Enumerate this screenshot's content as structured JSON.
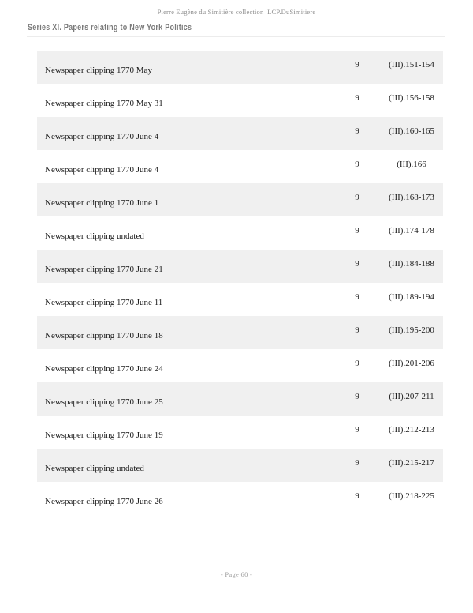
{
  "header": {
    "collection_line": "Pierre Eugène du Simitière collection  LCP.DuSimitiere",
    "series_title": "Series XI. Papers relating to New York Politics"
  },
  "table": {
    "rows": [
      {
        "title": "Newspaper clipping 1770 May",
        "box": "9",
        "ref": "(III).151-154"
      },
      {
        "title": "Newspaper clipping 1770 May 31",
        "box": "9",
        "ref": "(III).156-158"
      },
      {
        "title": "Newspaper clipping 1770 June 4",
        "box": "9",
        "ref": "(III).160-165"
      },
      {
        "title": "Newspaper clipping 1770 June 4",
        "box": "9",
        "ref": "(III).166"
      },
      {
        "title": "Newspaper clipping 1770 June 1",
        "box": "9",
        "ref": "(III).168-173"
      },
      {
        "title": "Newspaper clipping undated",
        "box": "9",
        "ref": "(III).174-178"
      },
      {
        "title": "Newspaper clipping 1770 June 21",
        "box": "9",
        "ref": "(III).184-188"
      },
      {
        "title": "Newspaper clipping 1770 June 11",
        "box": "9",
        "ref": "(III).189-194"
      },
      {
        "title": "Newspaper clipping 1770 June 18",
        "box": "9",
        "ref": "(III).195-200"
      },
      {
        "title": "Newspaper clipping 1770 June 24",
        "box": "9",
        "ref": "(III).201-206"
      },
      {
        "title": "Newspaper clipping 1770 June 25",
        "box": "9",
        "ref": "(III).207-211"
      },
      {
        "title": "Newspaper clipping 1770 June 19",
        "box": "9",
        "ref": "(III).212-213"
      },
      {
        "title": "Newspaper clipping undated",
        "box": "9",
        "ref": "(III).215-217"
      },
      {
        "title": "Newspaper clipping 1770 June 26",
        "box": "9",
        "ref": "(III).218-225"
      }
    ]
  },
  "footer": {
    "page_label": "- Page 60 -"
  },
  "colors": {
    "row_alt_bg": "#f0f0f0",
    "body_text": "#1c1c1c",
    "muted_text": "#8c8c8c",
    "series_title_text": "#7a7a7a",
    "divider": "#8f8f8f"
  }
}
